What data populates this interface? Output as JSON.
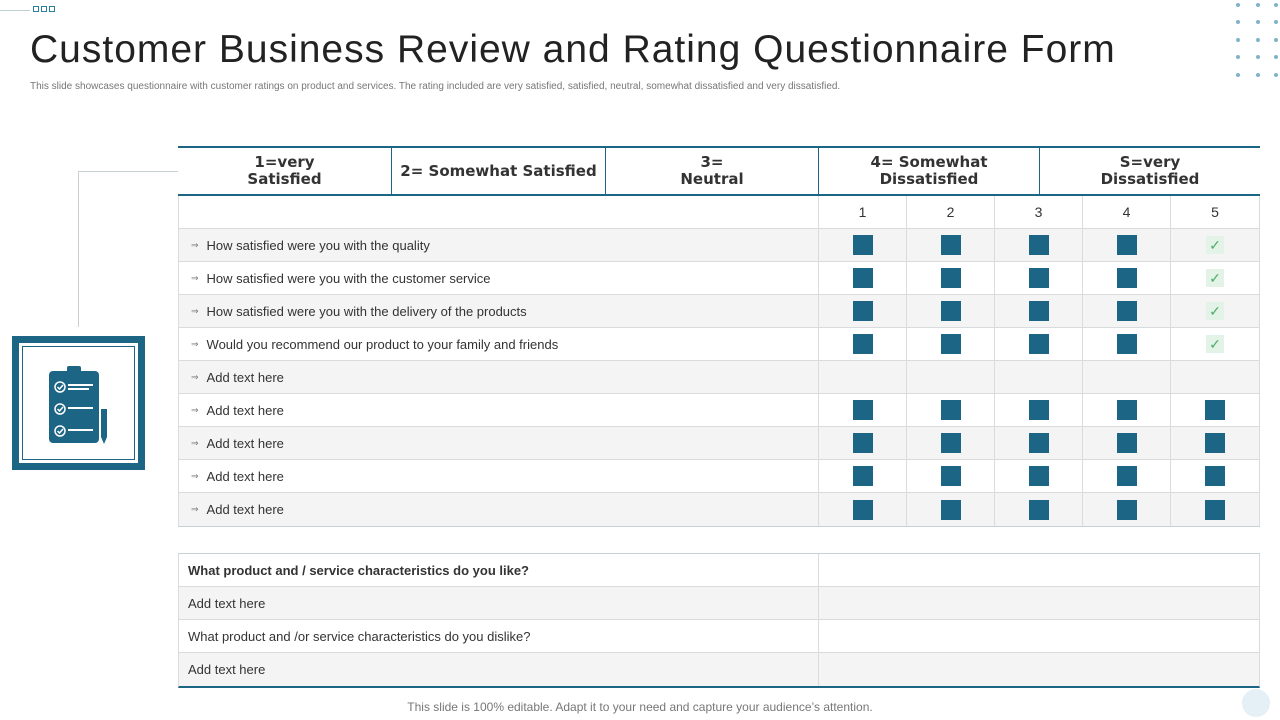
{
  "title": "Customer Business Review and Rating Questionnaire Form",
  "subtitle": "This slide showcases questionnaire with customer ratings on product and services. The rating included are very satisfied, satisfied, neutral, somewhat dissatisfied and very dissatisfied.",
  "header": {
    "col1_line1": "1=very",
    "col1_line2": "Satisfied",
    "col2": "2= Somewhat Satisfied",
    "col3_line1": "3=",
    "col3_line2": "Neutral",
    "col4_line1": "4= Somewhat",
    "col4_line2": "Dissatisfied",
    "col5_line1": "S=very",
    "col5_line2": "Dissatisfied"
  },
  "rating_numbers": [
    "1",
    "2",
    "3",
    "4",
    "5"
  ],
  "questions": [
    {
      "text": "How satisfied were you with the quality",
      "marks": [
        "box",
        "box",
        "box",
        "box",
        "check"
      ]
    },
    {
      "text": "How satisfied were you with the customer service",
      "marks": [
        "box",
        "box",
        "box",
        "box",
        "check"
      ]
    },
    {
      "text": "How satisfied were you with the delivery  of the products",
      "marks": [
        "box",
        "box",
        "box",
        "box",
        "check"
      ]
    },
    {
      "text": "Would you recommend  our product to your family and friends",
      "marks": [
        "box",
        "box",
        "box",
        "box",
        "check"
      ]
    },
    {
      "text": "Add text here",
      "marks": [
        "none",
        "none",
        "none",
        "none",
        "none"
      ]
    },
    {
      "text": "Add text here",
      "marks": [
        "box",
        "box",
        "box",
        "box",
        "box"
      ]
    },
    {
      "text": "Add text here",
      "marks": [
        "box",
        "box",
        "box",
        "box",
        "box"
      ]
    },
    {
      "text": "Add text here",
      "marks": [
        "box",
        "box",
        "box",
        "box",
        "box"
      ]
    },
    {
      "text": "Add text here",
      "marks": [
        "box",
        "box",
        "box",
        "box",
        "box"
      ]
    }
  ],
  "check_glyph": "✓",
  "open_questions": [
    {
      "text": "What product  and / service characteristics  do you like?",
      "bold": true
    },
    {
      "text": "Add text here",
      "bold": false
    },
    {
      "text": "What product and /or service  characteristics do you dislike?",
      "bold": false
    },
    {
      "text": "Add text here",
      "bold": false
    }
  ],
  "footer": "This slide is 100% editable. Adapt it to your need and capture your audience’s attention.",
  "colors": {
    "accent": "#1d6585",
    "check_bg": "#e3f3e7",
    "check": "#4caf6a"
  },
  "icons": {
    "side_icon": "clipboard-checklist-icon",
    "row_bullet": "double-arrow-icon"
  }
}
